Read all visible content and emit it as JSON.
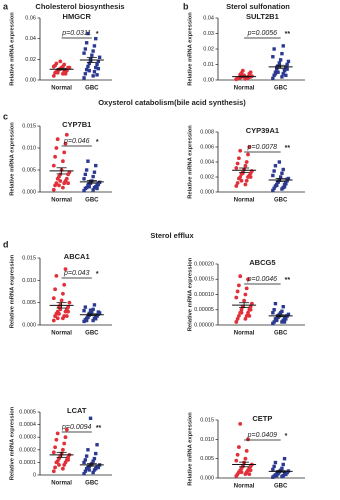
{
  "figure": {
    "panel_letters": [
      "a",
      "b",
      "c",
      "d"
    ],
    "headers": [
      "Cholesterol biosynthesis",
      "Sterol sulfonation",
      "Oxysterol catabolism(bile acid  synthesis)",
      "Sterol efflux"
    ]
  },
  "chart_data": [
    {
      "type": "dotplot",
      "title": "HMGCR",
      "annotation": "p=0.0311",
      "significance": "*",
      "ylabel": "Relative mRNA expression",
      "categories": [
        "Normal",
        "GBC"
      ],
      "colors": [
        "#e2303a",
        "#2b3990"
      ],
      "values": [
        [
          0.004,
          0.006,
          0.007,
          0.008,
          0.008,
          0.009,
          0.009,
          0.01,
          0.01,
          0.011,
          0.011,
          0.012,
          0.012,
          0.013,
          0.013,
          0.014,
          0.015,
          0.016,
          0.006,
          0.007,
          0.009,
          0.01,
          0.012,
          0.018
        ],
        [
          0.002,
          0.004,
          0.006,
          0.008,
          0.01,
          0.012,
          0.013,
          0.015,
          0.016,
          0.018,
          0.02,
          0.022,
          0.024,
          0.026,
          0.028,
          0.03,
          0.033,
          0.036,
          0.04,
          0.045,
          0.005,
          0.009,
          0.011,
          0.019
        ]
      ],
      "means": [
        0.0104,
        0.0194
      ],
      "sems": [
        0.0007,
        0.0025
      ],
      "ylim": [
        0,
        0.06
      ],
      "yticks": [
        {
          "value": 0,
          "label": "0.00"
        },
        0.02,
        0.04,
        0.06
      ]
    },
    {
      "type": "dotplot",
      "title": "SULT2B1",
      "annotation": "p=0.0056",
      "significance": "**",
      "ylabel": "Relative mRNA expression",
      "categories": [
        "Normal",
        "GBC"
      ],
      "colors": [
        "#e2303a",
        "#2b3990"
      ],
      "values": [
        [
          0.0005,
          0.0008,
          0.001,
          0.001,
          0.0012,
          0.0015,
          0.0015,
          0.0018,
          0.002,
          0.002,
          0.0022,
          0.0025,
          0.003,
          0.0005,
          0.0007,
          0.001,
          0.0012,
          0.0016,
          0.002,
          0.0035,
          0.004,
          0.0045,
          0.005,
          0.006
        ],
        [
          0.001,
          0.002,
          0.003,
          0.004,
          0.005,
          0.006,
          0.007,
          0.008,
          0.009,
          0.01,
          0.011,
          0.012,
          0.013,
          0.015,
          0.017,
          0.02,
          0.022,
          0.004,
          0.006,
          0.008,
          0.003,
          0.005,
          0.007,
          0.009
        ]
      ],
      "means": [
        0.0022,
        0.0085
      ],
      "sems": [
        0.0003,
        0.001
      ],
      "ylim": [
        0,
        0.04
      ],
      "yticks": [
        {
          "value": 0,
          "label": "0.00"
        },
        0.01,
        0.02,
        0.03,
        0.04
      ]
    },
    {
      "type": "dotplot",
      "title": "CYP7B1",
      "annotation": "p=0.046",
      "significance": "*",
      "ylabel": "Relative mRNA expression",
      "categories": [
        "Normal",
        "GBC"
      ],
      "colors": [
        "#e2303a",
        "#2b3990"
      ],
      "values": [
        [
          0.0005,
          0.001,
          0.0015,
          0.002,
          0.002,
          0.0025,
          0.003,
          0.003,
          0.0035,
          0.004,
          0.004,
          0.0045,
          0.005,
          0.006,
          0.007,
          0.008,
          0.009,
          0.01,
          0.011,
          0.012,
          0.013,
          0.0015,
          0.002,
          0.0025
        ],
        [
          0.0003,
          0.0005,
          0.0008,
          0.001,
          0.001,
          0.0012,
          0.0015,
          0.0015,
          0.0018,
          0.002,
          0.002,
          0.0022,
          0.0025,
          0.003,
          0.0035,
          0.004,
          0.0045,
          0.005,
          0.006,
          0.007,
          0.0008,
          0.0012,
          0.0017,
          0.0024
        ]
      ],
      "means": [
        0.0048,
        0.0023
      ],
      "sems": [
        0.0007,
        0.0003
      ],
      "ylim": [
        0,
        0.015
      ],
      "yticks": [
        {
          "value": 0,
          "label": "0.000"
        },
        0.005,
        {
          "value": 0.01,
          "label": "0.010"
        },
        0.015
      ]
    },
    {
      "type": "dotplot",
      "title": "CYP39A1",
      "annotation": "p=0.0078",
      "significance": "**",
      "ylabel": "Relative mRNA expression",
      "categories": [
        "Normal",
        "GBC"
      ],
      "colors": [
        "#e2303a",
        "#2b3990"
      ],
      "values": [
        [
          0.0008,
          0.001,
          0.0012,
          0.0015,
          0.0018,
          0.002,
          0.002,
          0.0022,
          0.0024,
          0.0025,
          0.0026,
          0.0028,
          0.003,
          0.0032,
          0.0035,
          0.0038,
          0.004,
          0.0045,
          0.005,
          0.0055,
          0.006,
          0.0015,
          0.002,
          0.0025
        ],
        [
          0.0002,
          0.0004,
          0.0005,
          0.0006,
          0.0008,
          0.001,
          0.001,
          0.0012,
          0.0013,
          0.0015,
          0.0016,
          0.0018,
          0.002,
          0.0022,
          0.0025,
          0.0028,
          0.003,
          0.0035,
          0.0007,
          0.0009,
          0.0011,
          0.0014,
          0.0017,
          0.004
        ]
      ],
      "means": [
        0.0029,
        0.0016
      ],
      "sems": [
        0.0003,
        0.0002
      ],
      "ylim": [
        0,
        0.008
      ],
      "yticks": [
        {
          "value": 0,
          "label": "0.000"
        },
        0.002,
        0.004,
        0.006,
        0.008
      ]
    },
    {
      "type": "dotplot",
      "title": "ABCA1",
      "annotation": "p=0.043",
      "significance": "*",
      "ylabel": "Relative mRNA expression",
      "categories": [
        "Normal",
        "GBC"
      ],
      "colors": [
        "#e2303a",
        "#2b3990"
      ],
      "values": [
        [
          0.001,
          0.0015,
          0.002,
          0.002,
          0.0025,
          0.003,
          0.003,
          0.0035,
          0.004,
          0.004,
          0.0045,
          0.005,
          0.0055,
          0.006,
          0.007,
          0.008,
          0.009,
          0.011,
          0.0125,
          0.0015,
          0.002,
          0.0025,
          0.003,
          0.0035
        ],
        [
          0.0008,
          0.001,
          0.0012,
          0.0015,
          0.0015,
          0.0018,
          0.002,
          0.002,
          0.0022,
          0.0024,
          0.0025,
          0.0027,
          0.003,
          0.0032,
          0.0035,
          0.004,
          0.0045,
          0.001,
          0.0014,
          0.0017,
          0.0021,
          0.0026,
          0.0029,
          0.0033
        ]
      ],
      "means": [
        0.0044,
        0.0023
      ],
      "sems": [
        0.0006,
        0.0002
      ],
      "ylim": [
        0,
        0.015
      ],
      "yticks": [
        {
          "value": 0,
          "label": "0.000"
        },
        0.005,
        {
          "value": 0.01,
          "label": "0.010"
        },
        0.015
      ]
    },
    {
      "type": "dotplot",
      "title": "ABCG5",
      "annotation": "p=0.0046",
      "significance": "**",
      "ylabel": "Relative mRNA expression",
      "categories": [
        "Normal",
        "GBC"
      ],
      "colors": [
        "#e2303a",
        "#2b3990"
      ],
      "values": [
        [
          1e-05,
          2e-05,
          2e-05,
          3e-05,
          3e-05,
          4e-05,
          4e-05,
          5e-05,
          5e-05,
          6e-05,
          6e-05,
          7e-05,
          8e-05,
          9e-05,
          0.0001,
          0.00011,
          0.00012,
          0.00013,
          0.00015,
          0.00016,
          3e-05,
          4e-05,
          5e-05,
          6e-05
        ],
        [
          5e-06,
          1e-05,
          1e-05,
          1.5e-05,
          2e-05,
          2e-05,
          2e-05,
          2.5e-05,
          3e-05,
          3e-05,
          3e-05,
          3.5e-05,
          4e-05,
          4e-05,
          4.5e-05,
          5e-05,
          6e-05,
          7e-05,
          1e-05,
          1.5e-05,
          2e-05,
          2.5e-05,
          3e-05,
          3.5e-05
        ]
      ],
      "means": [
        6.5e-05,
        3e-05
      ],
      "sems": [
        8e-06,
        3e-06
      ],
      "ylim": [
        0,
        0.0002
      ],
      "yticks": [
        {
          "value": 0,
          "label": "0.00000"
        },
        5e-05,
        {
          "value": 0.0001,
          "label": "0.00010"
        },
        0.00015,
        {
          "value": 0.0002,
          "label": "0.00020"
        }
      ]
    },
    {
      "type": "dotplot",
      "title": "LCAT",
      "annotation": "p=0.0094",
      "significance": "**",
      "ylabel": "Relative mRNA expression",
      "categories": [
        "Normal",
        "GBC"
      ],
      "colors": [
        "#e2303a",
        "#2b3990"
      ],
      "values": [
        [
          3e-05,
          5e-05,
          6e-05,
          8e-05,
          0.0001,
          0.0001,
          0.00011,
          0.00012,
          0.00013,
          0.00014,
          0.00015,
          0.00016,
          0.00017,
          0.00018,
          0.0002,
          0.00022,
          0.00025,
          0.00028,
          0.0003,
          0.00033,
          0.00036,
          8e-05,
          0.00012,
          0.00015
        ],
        [
          1e-05,
          2e-05,
          3e-05,
          4e-05,
          5e-05,
          5e-05,
          6e-05,
          6e-05,
          7e-05,
          7e-05,
          8e-05,
          8e-05,
          9e-05,
          0.0001,
          0.00011,
          0.00012,
          0.00013,
          0.00015,
          0.00017,
          0.0002,
          0.00024,
          4e-05,
          6e-05,
          0.00045
        ]
      ],
      "means": [
        0.00016,
        8e-05
      ],
      "sems": [
        2e-05,
        1e-05
      ],
      "ylim": [
        0,
        0.0005
      ],
      "yticks": [
        0,
        0.0001,
        0.0002,
        0.0003,
        0.0004,
        0.0005
      ]
    },
    {
      "type": "dotplot",
      "title": "CETP",
      "annotation": "p=0.0409",
      "significance": "*",
      "ylabel": "Relative mRNA expression",
      "categories": [
        "Normal",
        "GBC"
      ],
      "colors": [
        "#e2303a",
        "#2b3990"
      ],
      "values": [
        [
          0.0005,
          0.001,
          0.001,
          0.0015,
          0.0015,
          0.002,
          0.002,
          0.0025,
          0.0025,
          0.003,
          0.003,
          0.0035,
          0.004,
          0.0045,
          0.005,
          0.006,
          0.007,
          0.008,
          0.01,
          0.014,
          0.001,
          0.0015,
          0.002,
          0.003
        ],
        [
          0.0002,
          0.0004,
          0.0005,
          0.0006,
          0.0008,
          0.001,
          0.001,
          0.0012,
          0.0013,
          0.0015,
          0.0016,
          0.0018,
          0.002,
          0.0022,
          0.0025,
          0.003,
          0.0035,
          0.004,
          0.005,
          0.0006,
          0.0009,
          0.0011,
          0.0014,
          0.0017
        ]
      ],
      "means": [
        0.0035,
        0.0017
      ],
      "sems": [
        0.0006,
        0.0002
      ],
      "ylim": [
        0,
        0.015
      ],
      "yticks": [
        {
          "value": 0,
          "label": "0.000"
        },
        0.005,
        {
          "value": 0.01,
          "label": "0.010"
        },
        0.015
      ]
    }
  ]
}
